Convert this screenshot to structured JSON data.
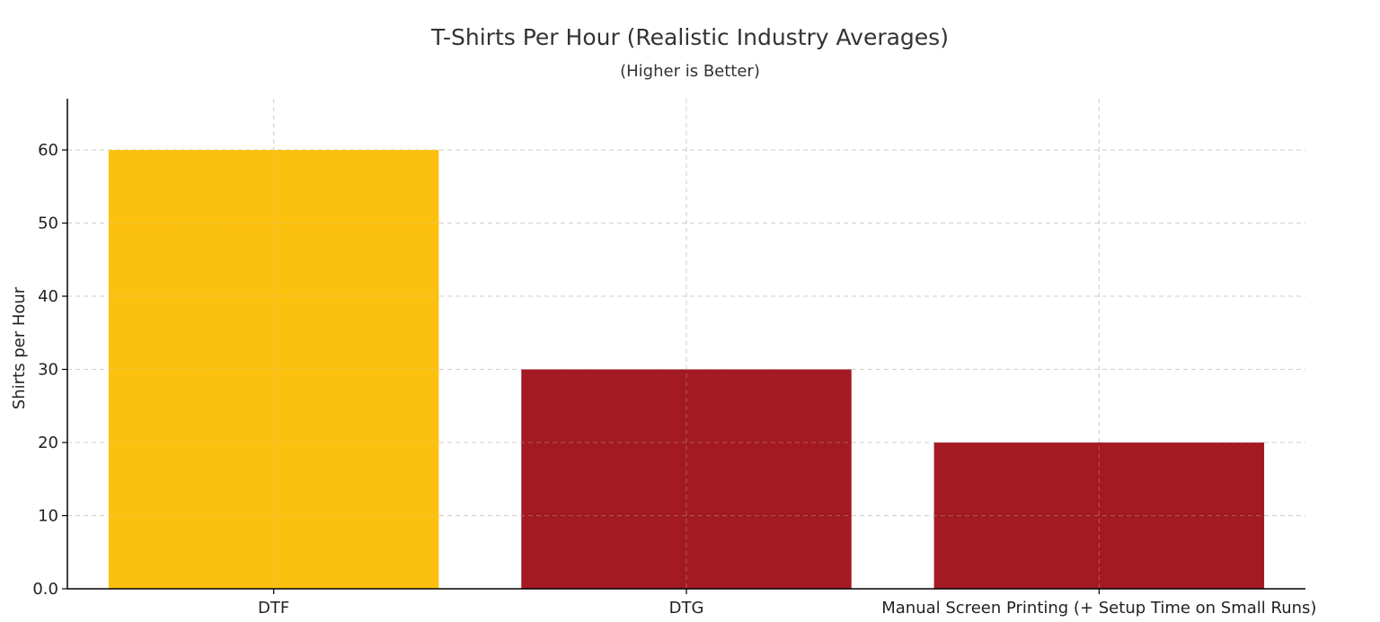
{
  "chart_data": {
    "type": "bar",
    "title": "T-Shirts Per Hour (Realistic Industry Averages)",
    "subtitle": "(Higher is Better)",
    "xlabel": "",
    "ylabel": "Shirts per Hour",
    "categories": [
      "DTF",
      "DTG",
      "Manual Screen Printing (+ Setup Time on Small Runs)"
    ],
    "values": [
      60,
      30,
      20
    ],
    "colors": [
      "#FCC10E",
      "#A31A23",
      "#A31A23"
    ],
    "ylim": [
      0,
      67
    ],
    "yticks": [
      0,
      10,
      20,
      30,
      40,
      50,
      60
    ],
    "ytick_labels": [
      "0.0",
      "10",
      "20",
      "30",
      "40",
      "50",
      "60"
    ],
    "grid": true,
    "legend": "none"
  }
}
